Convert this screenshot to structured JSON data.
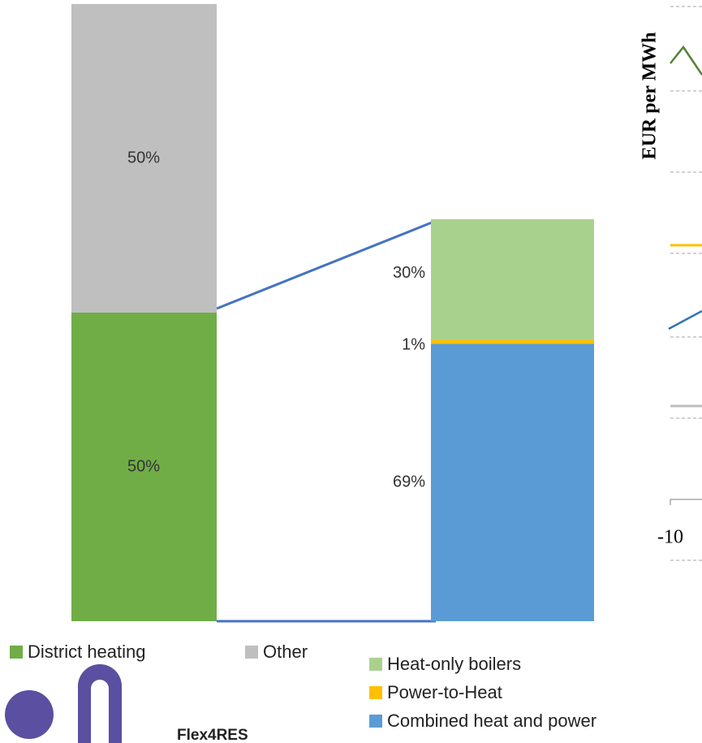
{
  "chart_data": [
    {
      "type": "bar",
      "series": [
        {
          "name": "District heating",
          "color": "#70ad47",
          "values": [
            50
          ],
          "value_labels": [
            "50%"
          ]
        },
        {
          "name": "Other",
          "color": "#bfbfbf",
          "values": [
            50
          ],
          "value_labels": [
            "50%"
          ]
        }
      ]
    },
    {
      "type": "bar",
      "series": [
        {
          "name": "Combined heat and power",
          "color": "#5b9bd5",
          "values": [
            69
          ],
          "value_labels": [
            "69%"
          ]
        },
        {
          "name": "Power-to-Heat",
          "color": "#ffc000",
          "values": [
            1
          ],
          "value_labels": [
            "1%"
          ]
        },
        {
          "name": "Heat-only boilers",
          "color": "#a9d18e",
          "values": [
            30
          ],
          "value_labels": [
            "30%"
          ]
        }
      ]
    },
    {
      "type": "line",
      "ylabel": "EUR per MWh",
      "xticks": [
        -10
      ]
    }
  ],
  "logo": "Flex4RES"
}
